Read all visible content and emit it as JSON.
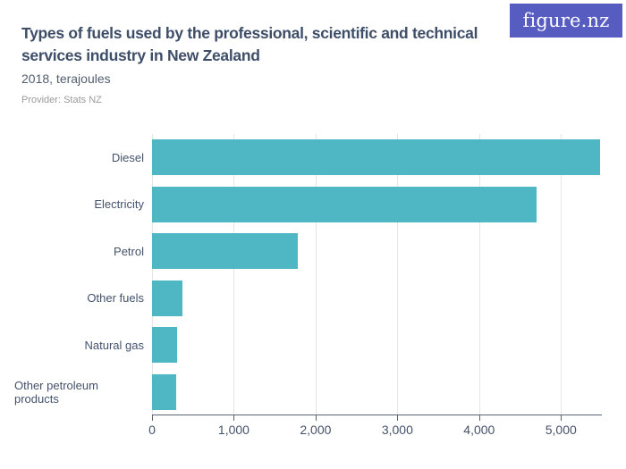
{
  "header": {
    "title": "Types of fuels used by the professional, scientific and technical services industry in New Zealand",
    "subtitle": "2018, terajoules",
    "provider": "Provider: Stats NZ"
  },
  "logo": {
    "text": "figure.nz"
  },
  "colors": {
    "bar": "#4fb6c4",
    "title_text": "#3e4e68",
    "subtitle_text": "#525e70",
    "axis_text": "#44526b",
    "provider_text": "#9b9b9b",
    "logo_bg": "#575cc1",
    "gridline": "#e5e5e5",
    "axis_line": "#5a6472"
  },
  "chart_data": {
    "type": "bar",
    "orientation": "horizontal",
    "title": "Types of fuels used by the professional, scientific and technical services industry in New Zealand",
    "subtitle": "2018, terajoules",
    "unit": "terajoules",
    "categories": [
      "Diesel",
      "Electricity",
      "Petrol",
      "Other fuels",
      "Natural gas",
      "Other petroleum products"
    ],
    "values": [
      5480,
      4700,
      1780,
      370,
      310,
      300
    ],
    "xlim": [
      0,
      5500
    ],
    "x_ticks": [
      0,
      1000,
      2000,
      3000,
      4000,
      5000
    ],
    "x_tick_labels": [
      "0",
      "1,000",
      "2,000",
      "3,000",
      "4,000",
      "5,000"
    ],
    "grid": true,
    "legend": false
  }
}
